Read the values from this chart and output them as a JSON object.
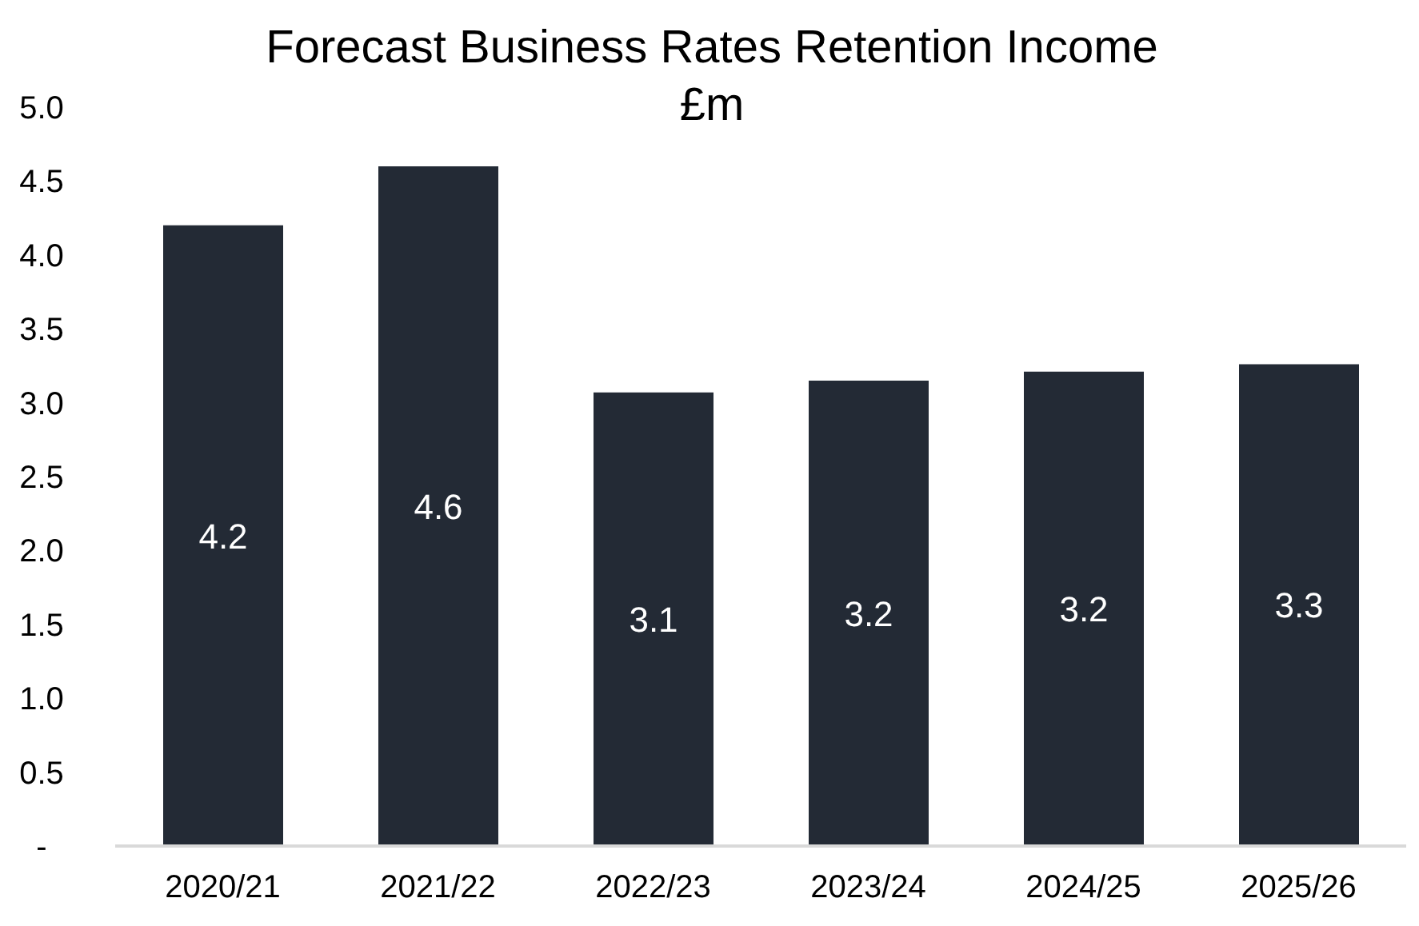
{
  "chart_data": {
    "type": "bar",
    "title": "Forecast Business Rates Retention Income £m",
    "categories": [
      "2020/21",
      "2021/22",
      "2022/23",
      "2023/24",
      "2024/25",
      "2025/26"
    ],
    "values": [
      4.2,
      4.6,
      3.07,
      3.15,
      3.21,
      3.26
    ],
    "value_labels": [
      "4.2",
      "4.6",
      "3.1",
      "3.2",
      "3.2",
      "3.3"
    ],
    "color": "#232a35",
    "ylim": [
      0,
      5
    ],
    "yticks": [
      {
        "value": 0,
        "label": "-"
      },
      0.5,
      {
        "value": 1,
        "label": "1.0"
      },
      1.5,
      {
        "value": 2,
        "label": "2.0"
      },
      2.5,
      {
        "value": 3,
        "label": "3.0"
      },
      3.5,
      {
        "value": 4,
        "label": "4.0"
      },
      4.5,
      {
        "value": 5,
        "label": "5.0"
      }
    ],
    "grid": false
  }
}
